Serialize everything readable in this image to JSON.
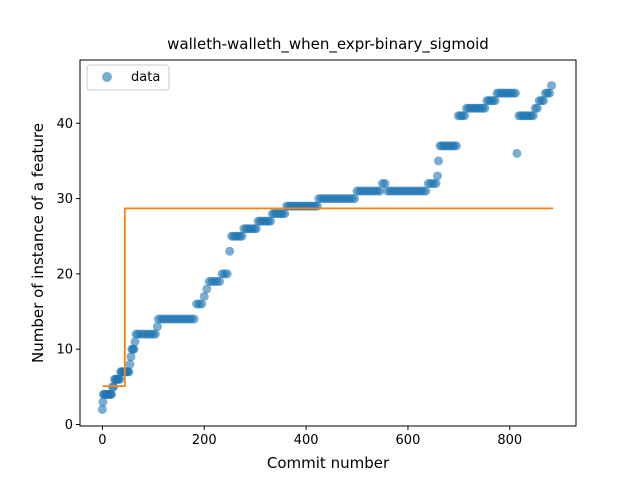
{
  "chart_data": {
    "type": "scatter",
    "title": "walleth-walleth_when_expr-binary_sigmoid",
    "xlabel": "Commit number",
    "ylabel": "Number of instance of a feature",
    "xlim": [
      -44,
      930
    ],
    "ylim": [
      -0.2,
      48.4
    ],
    "xticks": [
      0,
      200,
      400,
      600,
      800
    ],
    "yticks": [
      0,
      10,
      20,
      30,
      40
    ],
    "grid": false,
    "legend": {
      "placement": "upper-left",
      "entries": [
        "data"
      ]
    },
    "colors": {
      "points": "#1f77b4",
      "fit": "#ff7f0e"
    },
    "series": [
      {
        "name": "data",
        "kind": "scatter",
        "segments": [
          [
            0,
            2
          ],
          [
            1,
            3
          ],
          [
            2,
            4
          ],
          [
            4,
            4
          ],
          [
            6,
            4
          ],
          [
            8,
            4
          ],
          [
            10,
            4
          ],
          [
            12,
            4
          ],
          [
            14,
            4
          ],
          [
            16,
            4
          ],
          [
            18,
            4
          ],
          [
            20,
            5
          ],
          [
            22,
            5
          ],
          [
            24,
            6
          ],
          [
            26,
            6
          ],
          [
            28,
            6
          ],
          [
            30,
            6
          ],
          [
            32,
            6
          ],
          [
            34,
            6
          ],
          [
            36,
            7
          ],
          [
            38,
            7
          ],
          [
            40,
            7
          ],
          [
            42,
            7
          ],
          [
            44,
            7
          ],
          [
            46,
            7
          ],
          [
            48,
            7
          ],
          [
            50,
            7
          ],
          [
            52,
            7
          ],
          [
            54,
            8
          ],
          [
            56,
            9
          ],
          [
            58,
            10
          ],
          [
            60,
            10
          ],
          [
            62,
            10
          ],
          [
            64,
            11
          ],
          [
            66,
            12
          ],
          [
            70,
            12
          ],
          [
            75,
            12
          ],
          [
            80,
            12
          ],
          [
            85,
            12
          ],
          [
            90,
            12
          ],
          [
            95,
            12
          ],
          [
            100,
            12
          ],
          [
            104,
            12
          ],
          [
            108,
            13
          ],
          [
            110,
            14
          ],
          [
            115,
            14
          ],
          [
            120,
            14
          ],
          [
            125,
            14
          ],
          [
            130,
            14
          ],
          [
            135,
            14
          ],
          [
            140,
            14
          ],
          [
            145,
            14
          ],
          [
            150,
            14
          ],
          [
            155,
            14
          ],
          [
            160,
            14
          ],
          [
            165,
            14
          ],
          [
            170,
            14
          ],
          [
            175,
            14
          ],
          [
            180,
            14
          ],
          [
            185,
            16
          ],
          [
            190,
            16
          ],
          [
            195,
            16
          ],
          [
            200,
            17
          ],
          [
            205,
            18
          ],
          [
            210,
            19
          ],
          [
            215,
            19
          ],
          [
            220,
            19
          ],
          [
            225,
            19
          ],
          [
            230,
            19
          ],
          [
            235,
            20
          ],
          [
            240,
            20
          ],
          [
            245,
            20
          ],
          [
            250,
            23
          ],
          [
            254,
            25
          ],
          [
            258,
            25
          ],
          [
            262,
            25
          ],
          [
            266,
            25
          ],
          [
            270,
            25
          ],
          [
            274,
            25
          ],
          [
            278,
            26
          ],
          [
            282,
            26
          ],
          [
            286,
            26
          ],
          [
            290,
            26
          ],
          [
            294,
            26
          ],
          [
            298,
            26
          ],
          [
            302,
            26
          ],
          [
            306,
            27
          ],
          [
            310,
            27
          ],
          [
            314,
            27
          ],
          [
            318,
            27
          ],
          [
            322,
            27
          ],
          [
            326,
            27
          ],
          [
            330,
            27
          ],
          [
            334,
            28
          ],
          [
            338,
            28
          ],
          [
            342,
            28
          ],
          [
            346,
            28
          ],
          [
            350,
            28
          ],
          [
            354,
            28
          ],
          [
            358,
            28
          ],
          [
            362,
            29
          ],
          [
            366,
            29
          ],
          [
            370,
            29
          ],
          [
            374,
            29
          ],
          [
            378,
            29
          ],
          [
            382,
            29
          ],
          [
            386,
            29
          ],
          [
            390,
            29
          ],
          [
            394,
            29
          ],
          [
            398,
            29
          ],
          [
            402,
            29
          ],
          [
            406,
            29
          ],
          [
            410,
            29
          ],
          [
            414,
            29
          ],
          [
            418,
            29
          ],
          [
            422,
            29
          ],
          [
            425,
            30
          ],
          [
            430,
            30
          ],
          [
            435,
            30
          ],
          [
            440,
            30
          ],
          [
            445,
            30
          ],
          [
            450,
            30
          ],
          [
            455,
            30
          ],
          [
            460,
            30
          ],
          [
            465,
            30
          ],
          [
            470,
            30
          ],
          [
            475,
            30
          ],
          [
            480,
            30
          ],
          [
            485,
            30
          ],
          [
            490,
            30
          ],
          [
            495,
            30
          ],
          [
            500,
            31
          ],
          [
            505,
            31
          ],
          [
            510,
            31
          ],
          [
            515,
            31
          ],
          [
            520,
            31
          ],
          [
            525,
            31
          ],
          [
            530,
            31
          ],
          [
            535,
            31
          ],
          [
            540,
            31
          ],
          [
            545,
            31
          ],
          [
            550,
            32
          ],
          [
            555,
            32
          ],
          [
            560,
            31
          ],
          [
            565,
            31
          ],
          [
            570,
            31
          ],
          [
            575,
            31
          ],
          [
            580,
            31
          ],
          [
            585,
            31
          ],
          [
            590,
            31
          ],
          [
            595,
            31
          ],
          [
            600,
            31
          ],
          [
            605,
            31
          ],
          [
            610,
            31
          ],
          [
            615,
            31
          ],
          [
            620,
            31
          ],
          [
            625,
            31
          ],
          [
            630,
            31
          ],
          [
            635,
            31
          ],
          [
            640,
            32
          ],
          [
            645,
            32
          ],
          [
            650,
            32
          ],
          [
            655,
            32
          ],
          [
            658,
            33
          ],
          [
            660,
            35
          ],
          [
            663,
            37
          ],
          [
            667,
            37
          ],
          [
            671,
            37
          ],
          [
            675,
            37
          ],
          [
            679,
            37
          ],
          [
            683,
            37
          ],
          [
            687,
            37
          ],
          [
            691,
            37
          ],
          [
            695,
            37
          ],
          [
            699,
            41
          ],
          [
            703,
            41
          ],
          [
            707,
            41
          ],
          [
            711,
            41
          ],
          [
            715,
            42
          ],
          [
            719,
            42
          ],
          [
            723,
            42
          ],
          [
            727,
            42
          ],
          [
            731,
            42
          ],
          [
            735,
            42
          ],
          [
            739,
            42
          ],
          [
            743,
            42
          ],
          [
            747,
            42
          ],
          [
            751,
            42
          ],
          [
            755,
            43
          ],
          [
            759,
            43
          ],
          [
            763,
            43
          ],
          [
            767,
            43
          ],
          [
            771,
            43
          ],
          [
            775,
            44
          ],
          [
            779,
            44
          ],
          [
            783,
            44
          ],
          [
            787,
            44
          ],
          [
            791,
            44
          ],
          [
            795,
            44
          ],
          [
            799,
            44
          ],
          [
            803,
            44
          ],
          [
            807,
            44
          ],
          [
            811,
            44
          ],
          [
            814,
            36
          ],
          [
            818,
            41
          ],
          [
            822,
            41
          ],
          [
            826,
            41
          ],
          [
            830,
            41
          ],
          [
            834,
            41
          ],
          [
            838,
            41
          ],
          [
            842,
            41
          ],
          [
            846,
            41
          ],
          [
            850,
            42
          ],
          [
            854,
            42
          ],
          [
            858,
            43
          ],
          [
            862,
            43
          ],
          [
            866,
            43
          ],
          [
            870,
            44
          ],
          [
            874,
            44
          ],
          [
            878,
            44
          ],
          [
            882,
            45
          ]
        ]
      },
      {
        "kind": "line",
        "points": [
          [
            0,
            5.1
          ],
          [
            44,
            5.1
          ],
          [
            44,
            28.7
          ],
          [
            885,
            28.7
          ]
        ]
      }
    ]
  }
}
